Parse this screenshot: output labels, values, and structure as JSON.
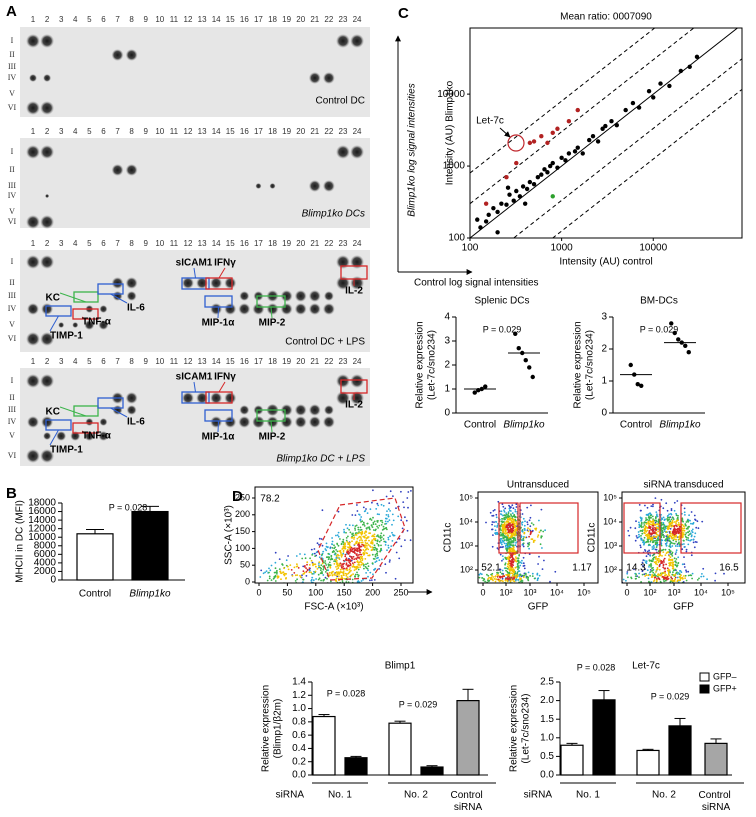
{
  "panel_labels": [
    "A",
    "B",
    "C",
    "D"
  ],
  "blots": {
    "column_numbers": [
      1,
      2,
      3,
      4,
      5,
      6,
      7,
      8,
      9,
      10,
      11,
      12,
      13,
      14,
      15,
      16,
      17,
      18,
      19,
      20,
      21,
      22,
      23,
      24
    ],
    "row_labels": [
      "I",
      "II",
      "III",
      "IV",
      "V",
      "VI"
    ],
    "panels": [
      {
        "caption": "Control DC"
      },
      {
        "caption": "Blimp1ko DCs"
      },
      {
        "caption": "Control DC + LPS",
        "annotations": [
          "KC",
          "IL-6",
          "TIMP-1",
          "TNF-α",
          "sICAM1",
          "IFNγ",
          "MIP-1α",
          "MIP-2",
          "IL-2"
        ]
      },
      {
        "caption": "Blimp1ko DC + LPS",
        "annotations": [
          "KC",
          "IL-6",
          "TIMP-1",
          "TNF-α",
          "sICAM1",
          "IFNγ",
          "MIP-1α",
          "MIP-2",
          "IL-2"
        ]
      }
    ]
  },
  "chart_data": [
    {
      "type": "bar",
      "ylabel": "MHCII in DC (MFI)",
      "categories": [
        "Control",
        "Blimp1ko"
      ],
      "series": [
        {
          "color": "#ffffff",
          "values": [
            10800,
            null
          ],
          "errors": [
            1000,
            null
          ]
        },
        {
          "color": "#000000",
          "values": [
            null,
            16000
          ],
          "errors": [
            null,
            1200
          ]
        }
      ],
      "ylim": [
        0,
        18000
      ],
      "yticks": [
        0,
        2000,
        4000,
        6000,
        8000,
        10000,
        12000,
        14000,
        16000,
        18000
      ],
      "annotations": [
        "P = 0.028"
      ]
    },
    {
      "type": "scatter",
      "title": "Mean ratio: 0007090",
      "xlabel": "Intensity (AU) control",
      "ylabel": "Intensity (AU) Blimp1ko",
      "xscale": "log",
      "yscale": "log",
      "xlim": [
        100,
        93000
      ],
      "ylim": [
        100,
        83000
      ],
      "xticks": [
        100,
        1000,
        10000
      ],
      "yticks": [
        100,
        1000,
        10000
      ],
      "series": [
        {
          "color": "#000000",
          "x": [
            120,
            130,
            150,
            160,
            180,
            200,
            220,
            250,
            270,
            300,
            320,
            350,
            380,
            420,
            450,
            500,
            550,
            600,
            650,
            700,
            750,
            800,
            900,
            1000,
            1100,
            1200,
            1400,
            1500,
            1700,
            2000,
            2200,
            2500,
            2800,
            3000,
            3500,
            4000,
            5000,
            6000,
            7000,
            9000,
            10000,
            12000,
            15000,
            20000,
            25000,
            30000,
            200,
            400,
            260
          ],
          "values": [
            180,
            140,
            170,
            210,
            260,
            230,
            300,
            290,
            400,
            330,
            450,
            380,
            520,
            480,
            600,
            560,
            700,
            760,
            900,
            820,
            1000,
            1100,
            950,
            1300,
            1200,
            1500,
            1600,
            1800,
            1500,
            2300,
            2600,
            2200,
            3300,
            3600,
            4200,
            3700,
            6000,
            7500,
            6500,
            11000,
            9000,
            14000,
            13000,
            21000,
            24000,
            33000,
            120,
            300,
            500
          ]
        },
        {
          "color": "#b22222",
          "x": [
            150,
            250,
            320,
            450,
            500,
            600,
            800,
            900,
            1200,
            1500,
            700
          ],
          "values": [
            300,
            700,
            1100,
            2100,
            2200,
            2600,
            2900,
            3300,
            4200,
            6000,
            2100
          ]
        },
        {
          "color": "#2ca02c",
          "x": [
            800
          ],
          "values": [
            380
          ]
        }
      ],
      "annotation": "Let-7c",
      "side_labels": [
        "Blimp1ko log signal intensities",
        "Control log signal intensities"
      ]
    },
    {
      "type": "dot",
      "title": "Splenic DCs",
      "ylabel": [
        "Relative expression",
        "(Let-7c/sno234)"
      ],
      "categories": [
        "Control",
        "Blimp1ko"
      ],
      "values": [
        [
          0.85,
          0.95,
          1.0,
          1.1
        ],
        [
          3.3,
          2.7,
          2.5,
          2.2,
          1.9,
          1.5
        ]
      ],
      "means": [
        1.0,
        2.5
      ],
      "ylim": [
        0,
        4
      ],
      "yticks": [
        0,
        1,
        2,
        3,
        4
      ],
      "annotations": [
        "P = 0.029"
      ]
    },
    {
      "type": "dot",
      "title": "BM-DCs",
      "ylabel": [
        "Relative expression",
        "(Let-7c/sno234)"
      ],
      "categories": [
        "Control",
        "Blimp1ko"
      ],
      "values": [
        [
          1.5,
          1.2,
          0.9,
          0.85
        ],
        [
          2.8,
          2.5,
          2.3,
          2.2,
          2.1,
          1.9
        ]
      ],
      "means": [
        1.2,
        2.2
      ],
      "ylim": [
        0,
        3
      ],
      "yticks": [
        0,
        1,
        2,
        3
      ],
      "annotations": [
        "P = 0.029"
      ]
    },
    {
      "type": "bar",
      "title": "Blimp1",
      "ylabel": [
        "Relative expression",
        "(Blimp1/β2m)"
      ],
      "xlabel": "siRNA",
      "categories": [
        "No. 1",
        "No. 2",
        "Control siRNA"
      ],
      "series": [
        {
          "color": "#ffffff",
          "values": [
            0.88,
            0.78,
            null
          ],
          "errors": [
            0.03,
            0.03,
            null
          ]
        },
        {
          "color": "#000000",
          "values": [
            0.26,
            0.12,
            null
          ],
          "errors": [
            0.02,
            0.02,
            null
          ]
        },
        {
          "color": "#a6a6a6",
          "values": [
            null,
            null,
            1.12
          ],
          "errors": [
            null,
            null,
            0.17
          ]
        }
      ],
      "ylim": [
        0,
        1.4
      ],
      "yticks": [
        {
          "value": 0,
          "label": "0.0"
        },
        0.2,
        0.4,
        0.6,
        0.8,
        {
          "value": 1,
          "label": "1.0"
        },
        1.2,
        1.4
      ],
      "annotations": [
        "P = 0.028",
        "P = 0.029"
      ]
    },
    {
      "type": "bar",
      "title": "Let-7c",
      "ylabel": [
        "Relative expression",
        "(Let-7c/sno234)"
      ],
      "xlabel": "siRNA",
      "categories": [
        "No. 1",
        "No. 2",
        "Control siRNA"
      ],
      "series": [
        {
          "name": "GFP–",
          "color": "#ffffff",
          "values": [
            0.8,
            0.66,
            null
          ],
          "errors": [
            0.05,
            0.03,
            null
          ]
        },
        {
          "name": "GFP+",
          "color": "#000000",
          "values": [
            2.02,
            1.32,
            null
          ],
          "errors": [
            0.25,
            0.2,
            null
          ]
        },
        {
          "color": "#a6a6a6",
          "values": [
            null,
            null,
            0.85
          ],
          "errors": [
            null,
            null,
            0.12
          ]
        }
      ],
      "ylim": [
        0,
        2.5
      ],
      "yticks": [
        {
          "value": 0,
          "label": "0.0"
        },
        0.5,
        {
          "value": 1,
          "label": "1.0"
        },
        1.5,
        {
          "value": 2,
          "label": "2.0"
        },
        2.5
      ],
      "annotations": [
        "P = 0.028",
        "P = 0.029"
      ]
    }
  ],
  "flow": {
    "plots": [
      {
        "xlabel": "FSC-A (×10³)",
        "ylabel": "SSC-A (×10³)",
        "xticks": [
          0,
          50,
          100,
          150,
          200,
          250
        ],
        "yticks": [
          0,
          50,
          100,
          150,
          200,
          250
        ],
        "gates": [
          78.2
        ]
      },
      {
        "title": "Untransduced",
        "xlabel": "GFP",
        "ylabel": "CD11c",
        "xticks": [
          0,
          "10²",
          "10³",
          "10⁴",
          "10⁵"
        ],
        "yticks": [
          "10²",
          "10³",
          "10⁴",
          "10⁵"
        ],
        "gates": [
          52.1,
          1.17
        ]
      },
      {
        "title": "siRNA transduced",
        "xlabel": "GFP",
        "ylabel": "CD11c",
        "xticks": [
          0,
          "10²",
          "10³",
          "10⁴",
          "10⁵"
        ],
        "yticks": [
          "10²",
          "10³",
          "10⁴",
          "10⁵"
        ],
        "gates": [
          14.3,
          16.5
        ]
      }
    ]
  }
}
